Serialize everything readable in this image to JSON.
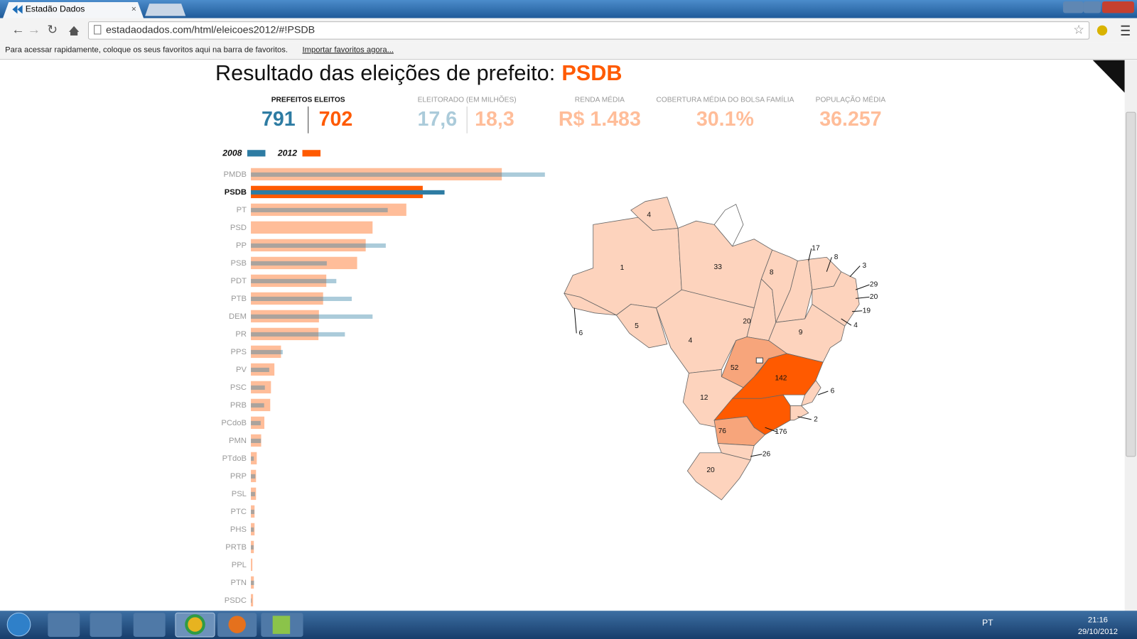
{
  "browser": {
    "tab_title": "Estadão Dados",
    "url": "estadaodados.com/html/eleicoes2012/#!PSDB",
    "bookmarks_hint": "Para acessar rapidamente, coloque os seus favoritos aqui na barra de favoritos.",
    "bookmarks_link": "Importar favoritos agora..."
  },
  "page": {
    "title": "Resultado das eleições de prefeito:",
    "party": "PSDB",
    "stats": [
      {
        "label": "PREFEITOS ELEITOS",
        "values": [
          "791",
          "702"
        ]
      },
      {
        "label": "ELEITORADO (EM MILHÕES)",
        "values": [
          "17,6",
          "18,3"
        ]
      },
      {
        "label": "RENDA MÉDIA",
        "values": [
          "R$ 1.483"
        ]
      },
      {
        "label": "COBERTURA MÉDIA DO BOLSA FAMÍLIA",
        "values": [
          "30.1%"
        ]
      },
      {
        "label": "POPULAÇÃO MÉDIA",
        "values": [
          "36.257"
        ]
      }
    ]
  },
  "chart_data": {
    "type": "bar",
    "orientation": "horizontal",
    "categories": [
      "PMDB",
      "PSDB",
      "PT",
      "PSD",
      "PP",
      "PSB",
      "PDT",
      "PTB",
      "DEM",
      "PR",
      "PPS",
      "PV",
      "PSC",
      "PRB",
      "PCdoB",
      "PMN",
      "PTdoB",
      "PRP",
      "PSL",
      "PTC",
      "PHS",
      "PRTB",
      "PPL",
      "PTN",
      "PSDC"
    ],
    "series": [
      {
        "name": "2008",
        "color": "#2e7ca3",
        "values": [
          1201,
          791,
          559,
          null,
          551,
          310,
          349,
          412,
          497,
          384,
          130,
          75,
          57,
          54,
          40,
          41,
          12,
          18,
          17,
          14,
          12,
          11,
          null,
          13,
          3
        ]
      },
      {
        "name": "2012",
        "color": "#ff5a00",
        "values": [
          1025,
          702,
          635,
          497,
          469,
          434,
          308,
          295,
          278,
          276,
          123,
          96,
          82,
          79,
          55,
          42,
          24,
          21,
          21,
          15,
          15,
          12,
          6,
          12,
          9
        ]
      }
    ]
  },
  "map": {
    "labels": [
      "4",
      "1",
      "33",
      "8",
      "17",
      "8",
      "3",
      "29",
      "20",
      "19",
      "4",
      "9",
      "20",
      "5",
      "4",
      "52",
      "142",
      "6",
      "12",
      "2",
      "176",
      "76",
      "26",
      "20",
      "6"
    ]
  },
  "taskbar": {
    "language": "PT",
    "time": "21:16",
    "date": "29/10/2012"
  }
}
